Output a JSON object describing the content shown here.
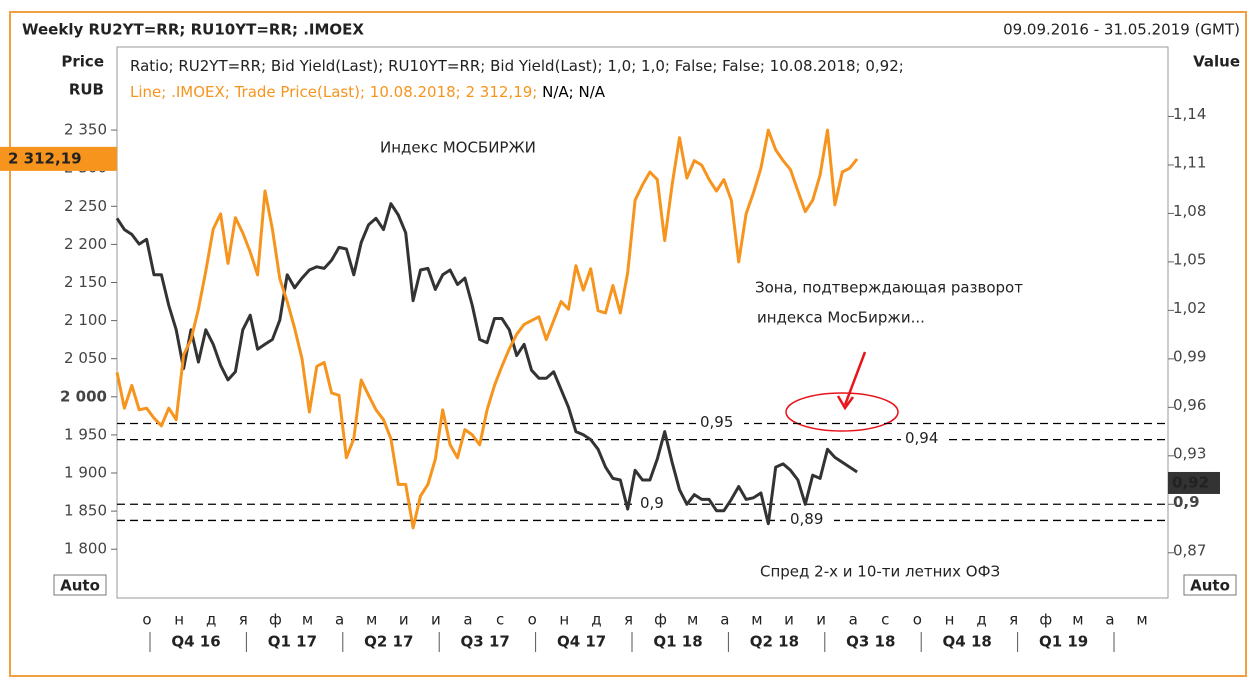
{
  "chart_data": {
    "type": "line",
    "title": "Weekly RU2YT=RR; RU10YT=RR; .IMOEX",
    "date_range": "09.09.2016 - 31.05.2019 (GMT)",
    "y_label_1": "Price",
    "y_label_2": "RUB",
    "y2_label": "Value",
    "auto_label": "Auto",
    "xlim": [
      "2016-09-09",
      "2019-05-31"
    ],
    "ylim": [
      1736,
      2459
    ],
    "yticks": [
      {
        "value": 1800,
        "label": "1 800"
      },
      {
        "value": 1850,
        "label": "1 850"
      },
      {
        "value": 1900,
        "label": "1 900"
      },
      {
        "value": 1950,
        "label": "1 950"
      },
      {
        "value": 2000,
        "label": "2 000",
        "bold": true
      },
      {
        "value": 2050,
        "label": "2 050"
      },
      {
        "value": 2100,
        "label": "2 100"
      },
      {
        "value": 2150,
        "label": "2 150"
      },
      {
        "value": 2200,
        "label": "2 200"
      },
      {
        "value": 2250,
        "label": "2 250"
      },
      {
        "value": 2300,
        "label": "2 300"
      },
      {
        "value": 2350,
        "label": "2 350"
      }
    ],
    "y2lim": [
      0.842,
      1.183
    ],
    "y2ticks": [
      {
        "value": 0.87,
        "label": "0,87"
      },
      {
        "value": 0.9,
        "label": "0,9",
        "bold": true
      },
      {
        "value": 0.93,
        "label": "0,93"
      },
      {
        "value": 0.96,
        "label": "0,96"
      },
      {
        "value": 0.99,
        "label": "0,99"
      },
      {
        "value": 1.02,
        "label": "1,02"
      },
      {
        "value": 1.05,
        "label": "1,05"
      },
      {
        "value": 1.08,
        "label": "1,08"
      },
      {
        "value": 1.11,
        "label": "1,11"
      },
      {
        "value": 1.14,
        "label": "1,14"
      }
    ],
    "months": [
      "о",
      "н",
      "д",
      "я",
      "ф",
      "м",
      "а",
      "м",
      "и",
      "и",
      "а",
      "с",
      "о",
      "н",
      "д",
      "я",
      "ф",
      "м",
      "а",
      "м",
      "и",
      "и",
      "а",
      "с",
      "о",
      "н",
      "д",
      "я",
      "ф",
      "м",
      "а",
      "м"
    ],
    "quarters": [
      "Q4 16",
      "Q1 17",
      "Q2 17",
      "Q3 17",
      "Q4 17",
      "Q1 18",
      "Q2 18",
      "Q3 18",
      "Q4 18",
      "Q1 19"
    ],
    "x": [
      "2016-09-09",
      "2016-09-16",
      "2016-09-23",
      "2016-09-30",
      "2016-10-07",
      "2016-10-14",
      "2016-10-21",
      "2016-10-28",
      "2016-11-04",
      "2016-11-11",
      "2016-11-18",
      "2016-11-25",
      "2016-12-02",
      "2016-12-09",
      "2016-12-16",
      "2016-12-23",
      "2016-12-30",
      "2017-01-06",
      "2017-01-13",
      "2017-01-20",
      "2017-01-27",
      "2017-02-03",
      "2017-02-10",
      "2017-02-17",
      "2017-02-24",
      "2017-03-03",
      "2017-03-10",
      "2017-03-17",
      "2017-03-24",
      "2017-03-31",
      "2017-04-07",
      "2017-04-14",
      "2017-04-21",
      "2017-04-28",
      "2017-05-05",
      "2017-05-12",
      "2017-05-19",
      "2017-05-26",
      "2017-06-02",
      "2017-06-09",
      "2017-06-16",
      "2017-06-23",
      "2017-06-30",
      "2017-07-07",
      "2017-07-14",
      "2017-07-21",
      "2017-07-28",
      "2017-08-04",
      "2017-08-11",
      "2017-08-18",
      "2017-08-25",
      "2017-09-01",
      "2017-09-08",
      "2017-09-15",
      "2017-09-22",
      "2017-09-29",
      "2017-10-06",
      "2017-10-13",
      "2017-10-20",
      "2017-10-27",
      "2017-11-03",
      "2017-11-10",
      "2017-11-17",
      "2017-11-24",
      "2017-12-01",
      "2017-12-08",
      "2017-12-15",
      "2017-12-22",
      "2017-12-29",
      "2018-01-05",
      "2018-01-12",
      "2018-01-19",
      "2018-01-26",
      "2018-02-02",
      "2018-02-09",
      "2018-02-16",
      "2018-02-23",
      "2018-03-02",
      "2018-03-09",
      "2018-03-16",
      "2018-03-23",
      "2018-03-30",
      "2018-04-06",
      "2018-04-13",
      "2018-04-20",
      "2018-04-27",
      "2018-05-04",
      "2018-05-11",
      "2018-05-18",
      "2018-05-25",
      "2018-06-01",
      "2018-06-08",
      "2018-06-15",
      "2018-06-22",
      "2018-06-29",
      "2018-07-06",
      "2018-07-13",
      "2018-07-20",
      "2018-07-27",
      "2018-08-03",
      "2018-08-10"
    ],
    "series": [
      {
        "name": "Ratio; RU2YT=RR; Bid Yield(Last); RU10YT=RR; Bid Yield(Last);  1,0; 1,0; False; False; 10.08.2018; 0,92;",
        "color": "#333333",
        "axis": "y2",
        "last_label": "0,92",
        "values": [
          1.077,
          1.07,
          1.067,
          1.061,
          1.064,
          1.042,
          1.042,
          1.023,
          1.008,
          0.984,
          1.008,
          0.988,
          1.008,
          0.999,
          0.986,
          0.977,
          0.982,
          1.008,
          1.017,
          0.996,
          0.999,
          1.002,
          1.014,
          1.042,
          1.034,
          1.04,
          1.045,
          1.047,
          1.046,
          1.051,
          1.059,
          1.058,
          1.042,
          1.062,
          1.073,
          1.077,
          1.07,
          1.086,
          1.079,
          1.068,
          1.026,
          1.045,
          1.046,
          1.033,
          1.042,
          1.045,
          1.036,
          1.04,
          1.023,
          1.002,
          1.0,
          1.015,
          1.015,
          1.008,
          0.992,
          0.999,
          0.983,
          0.978,
          0.978,
          0.982,
          0.971,
          0.96,
          0.945,
          0.943,
          0.94,
          0.934,
          0.923,
          0.916,
          0.915,
          0.897,
          0.921,
          0.915,
          0.915,
          0.928,
          0.945,
          0.926,
          0.909,
          0.9,
          0.906,
          0.903,
          0.903,
          0.896,
          0.896,
          0.903,
          0.911,
          0.903,
          0.904,
          0.907,
          0.888,
          0.923,
          0.925,
          0.921,
          0.915,
          0.9,
          0.918,
          0.916,
          0.934,
          0.929,
          0.926,
          0.923,
          0.92
        ]
      },
      {
        "name": "Line; .IMOEX; Trade Price(Last); 10.08.2018; 2 312,19;",
        "legend_suffix": " N/A; N/A",
        "color": "#f7941d",
        "last_label": "2 312,19",
        "values": [
          2032,
          1985,
          2015,
          1983,
          1985,
          1972,
          1962,
          1985,
          1970,
          2055,
          2075,
          2115,
          2165,
          2220,
          2240,
          2175,
          2235,
          2215,
          2190,
          2160,
          2270,
          2220,
          2155,
          2125,
          2090,
          2050,
          1980,
          2040,
          2045,
          2005,
          2002,
          1920,
          1945,
          2022,
          2002,
          1983,
          1970,
          1945,
          1885,
          1885,
          1828,
          1870,
          1885,
          1918,
          1983,
          1937,
          1920,
          1957,
          1950,
          1937,
          1983,
          2015,
          2040,
          2063,
          2082,
          2095,
          2100,
          2105,
          2075,
          2100,
          2125,
          2115,
          2172,
          2140,
          2168,
          2113,
          2110,
          2146,
          2110,
          2163,
          2258,
          2278,
          2295,
          2285,
          2205,
          2278,
          2340,
          2287,
          2310,
          2304,
          2285,
          2270,
          2285,
          2258,
          2177,
          2240,
          2268,
          2300,
          2350,
          2324,
          2310,
          2298,
          2270,
          2243,
          2258,
          2291,
          2350,
          2252,
          2295,
          2300,
          2312.19
        ]
      }
    ],
    "hlines": [
      {
        "value": 0.95,
        "label": "0,95"
      },
      {
        "value": 0.94,
        "label": "0,94"
      },
      {
        "value": 0.9,
        "label": "0,9"
      },
      {
        "value": 0.89,
        "label": "0,89"
      }
    ],
    "annotations": {
      "index_label": "Индекс МОСБИРЖИ",
      "zone_line_1": "Зона, подтверждающая разворот",
      "zone_line_2": "индекса МосБиржи...",
      "spread_label": "Спред 2-х и 10-ти летних ОФЗ"
    }
  }
}
